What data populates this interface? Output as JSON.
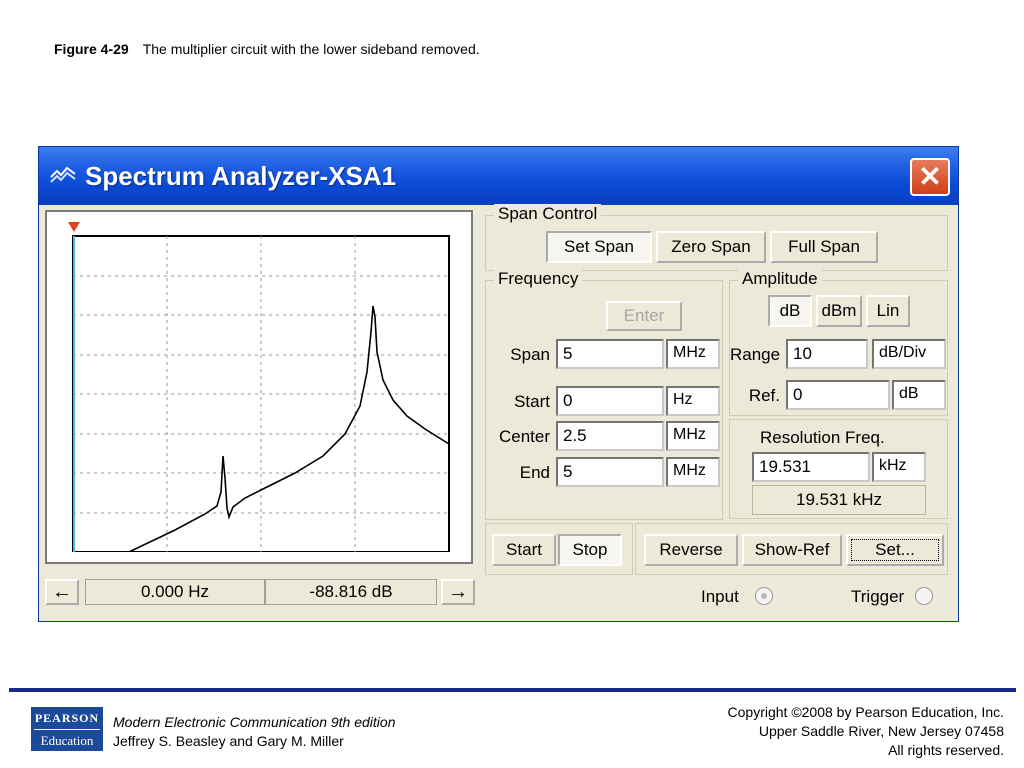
{
  "figure": {
    "number": "Figure 4-29",
    "caption": "The multiplier circuit with the lower sideband removed."
  },
  "window": {
    "title": "Spectrum Analyzer-XSA1",
    "close_glyph": "✕",
    "icon": "spectrum-analyzer-icon"
  },
  "plot": {
    "background": "#ffffff",
    "trace_color": "#000000",
    "cursor_color": "#49b7e8",
    "marker_color": "#e0401a"
  },
  "readout": {
    "left_arrow": "←",
    "right_arrow": "→",
    "frequency": "0.000  Hz",
    "level": "-88.816  dB"
  },
  "span_control": {
    "label": "Span Control",
    "set_span": "Set Span",
    "zero_span": "Zero Span",
    "full_span": "Full Span"
  },
  "frequency": {
    "label": "Frequency",
    "enter": "Enter",
    "span_label": "Span",
    "span_value": "5",
    "span_unit": "MHz",
    "start_label": "Start",
    "start_value": "0",
    "start_unit": "Hz",
    "center_label": "Center",
    "center_value": "2.5",
    "center_unit": "MHz",
    "end_label": "End",
    "end_value": "5",
    "end_unit": "MHz"
  },
  "amplitude": {
    "label": "Amplitude",
    "db": "dB",
    "dbm": "dBm",
    "lin": "Lin",
    "range_label": "Range",
    "range_value": "10",
    "range_unit": "dB/Div",
    "ref_label": "Ref.",
    "ref_value": "0",
    "ref_unit": "dB"
  },
  "resolution": {
    "label": "Resolution Freq.",
    "value": "19.531",
    "unit": "kHz",
    "readout": "19.531 kHz"
  },
  "controls": {
    "start": "Start",
    "stop": "Stop",
    "reverse": "Reverse",
    "show_ref": "Show-Ref",
    "set": "Set...",
    "input_label": "Input",
    "trigger_label": "Trigger"
  },
  "footer": {
    "logo_top": "PEARSON",
    "logo_bottom": "Education",
    "book_title": "Modern Electronic Communication 9th edition",
    "authors": "Jeffrey S. Beasley and Gary M. Miller",
    "copyright_line1": "Copyright ©2008 by Pearson Education, Inc.",
    "copyright_line2": "Upper Saddle River, New Jersey 07458",
    "copyright_line3": "All rights reserved."
  }
}
